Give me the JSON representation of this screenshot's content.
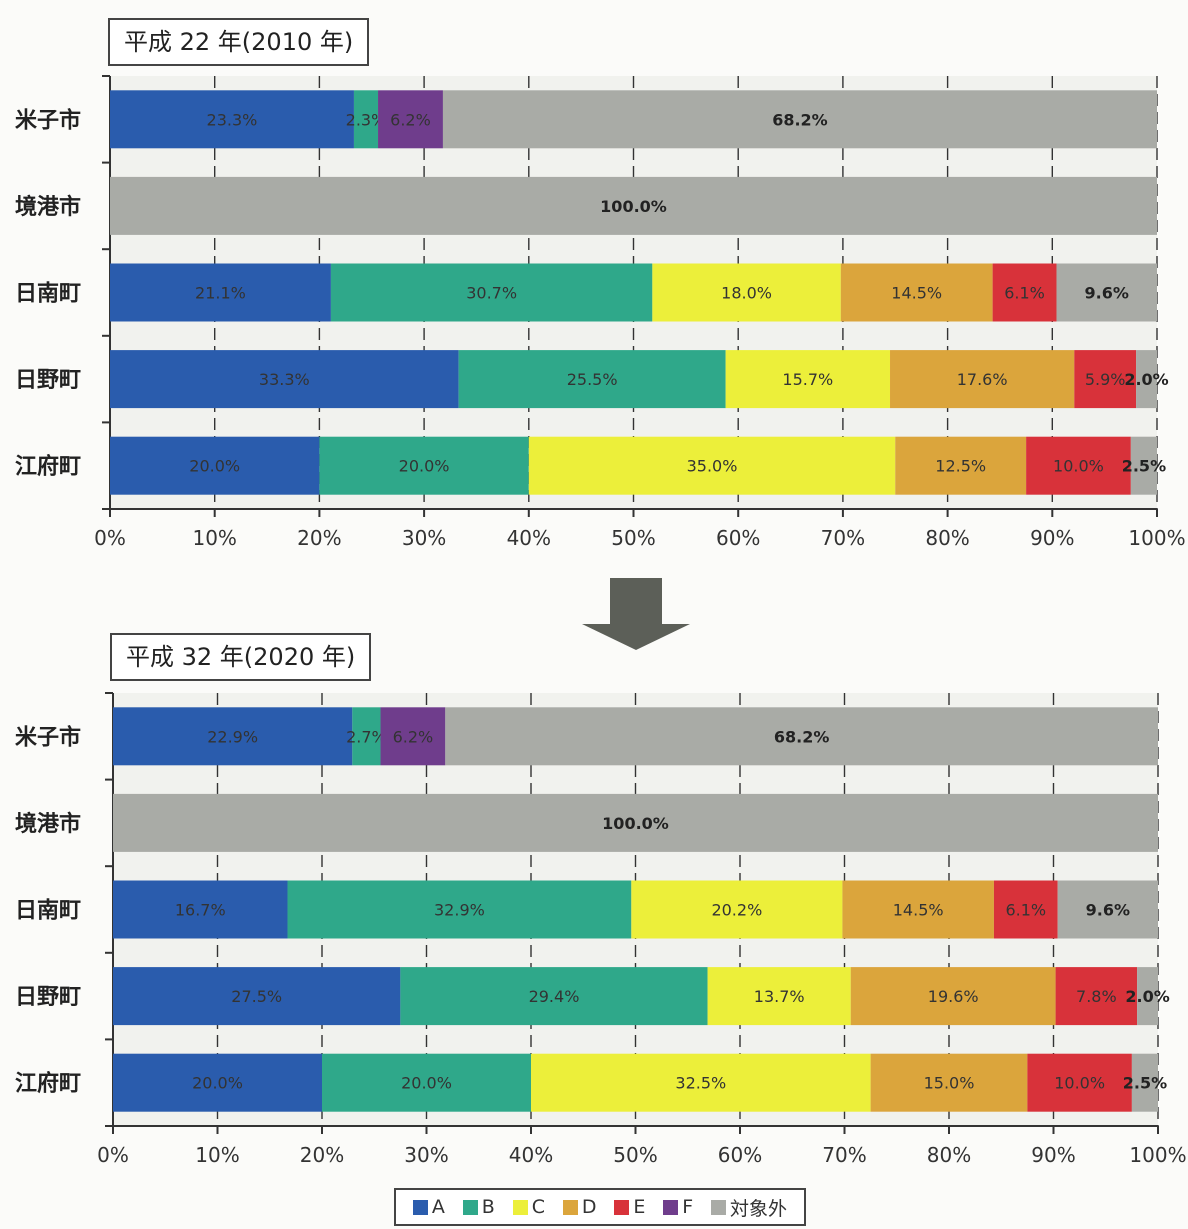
{
  "colors": {
    "A": "#2a5cad",
    "B": "#2fa88a",
    "C": "#ecef3a",
    "D": "#dba53c",
    "E": "#d8323a",
    "F": "#6f3d8c",
    "対象外": "#a9aba6"
  },
  "chart_data": [
    {
      "type": "bar",
      "orientation": "horizontal",
      "stacked": true,
      "title": "平成 22 年(2010 年)",
      "categories": [
        "米子市",
        "境港市",
        "日南町",
        "日野町",
        "江府町"
      ],
      "series": [
        {
          "name": "A",
          "values": [
            23.3,
            0,
            21.1,
            33.3,
            20.0
          ]
        },
        {
          "name": "B",
          "values": [
            2.3,
            0,
            30.7,
            25.5,
            20.0
          ]
        },
        {
          "name": "C",
          "values": [
            0,
            0,
            18.0,
            15.7,
            35.0
          ]
        },
        {
          "name": "D",
          "values": [
            0,
            0,
            14.5,
            17.6,
            12.5
          ]
        },
        {
          "name": "E",
          "values": [
            0,
            0,
            6.1,
            5.9,
            10.0
          ]
        },
        {
          "name": "F",
          "values": [
            6.2,
            0,
            0,
            0,
            0
          ]
        },
        {
          "name": "対象外",
          "values": [
            68.2,
            100.0,
            9.6,
            2.0,
            2.5
          ]
        }
      ],
      "xlim": [
        0,
        100
      ],
      "xticks": [
        "0%",
        "10%",
        "20%",
        "30%",
        "40%",
        "50%",
        "60%",
        "70%",
        "80%",
        "90%",
        "100%"
      ],
      "grid": "vertical dashed"
    },
    {
      "type": "bar",
      "orientation": "horizontal",
      "stacked": true,
      "title": "平成 32 年(2020 年)",
      "categories": [
        "米子市",
        "境港市",
        "日南町",
        "日野町",
        "江府町"
      ],
      "series": [
        {
          "name": "A",
          "values": [
            22.9,
            0,
            16.7,
            27.5,
            20.0
          ]
        },
        {
          "name": "B",
          "values": [
            2.7,
            0,
            32.9,
            29.4,
            20.0
          ]
        },
        {
          "name": "C",
          "values": [
            0,
            0,
            20.2,
            13.7,
            32.5
          ]
        },
        {
          "name": "D",
          "values": [
            0,
            0,
            14.5,
            19.6,
            15.0
          ]
        },
        {
          "name": "E",
          "values": [
            0,
            0,
            6.1,
            7.8,
            10.0
          ]
        },
        {
          "name": "F",
          "values": [
            6.2,
            0,
            0,
            0,
            0
          ]
        },
        {
          "name": "対象外",
          "values": [
            68.2,
            100.0,
            9.6,
            2.0,
            2.5
          ]
        }
      ],
      "xlim": [
        0,
        100
      ],
      "xticks": [
        "0%",
        "10%",
        "20%",
        "30%",
        "40%",
        "50%",
        "60%",
        "70%",
        "80%",
        "90%",
        "100%"
      ],
      "grid": "vertical dashed",
      "legend": "bottom-center"
    }
  ]
}
